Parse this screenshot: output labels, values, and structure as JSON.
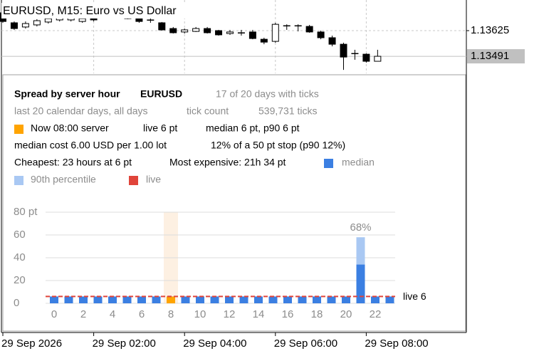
{
  "chart_data": [
    {
      "type": "candlestick",
      "title": "EURUSD, M15:  Euro vs US Dollar",
      "categories": [
        "29 Sep 2026",
        null,
        null,
        null,
        null,
        null,
        null,
        null,
        "29 Sep 02:00",
        null,
        null,
        null,
        null,
        null,
        null,
        null,
        "29 Sep 04:00",
        null,
        null,
        null,
        null,
        null,
        null,
        null,
        "29 Sep 06:00",
        null,
        null,
        null,
        null,
        null,
        null,
        null,
        "29 Sep 08:00",
        null
      ],
      "open": [
        1.13718,
        1.13666,
        1.13644,
        1.13655,
        1.1367,
        1.13681,
        1.13681,
        1.13673,
        1.13703,
        1.13699,
        1.13703,
        1.13711,
        1.13692,
        1.13681,
        1.13666,
        1.13636,
        1.13618,
        1.13621,
        1.13636,
        1.13625,
        1.1361,
        1.13614,
        1.13618,
        1.1358,
        1.13569,
        1.13651,
        1.13651,
        1.13647,
        1.13618,
        1.13588,
        1.13554,
        1.13506,
        1.13502,
        1.13465
      ],
      "high": [
        1.13729,
        1.13673,
        1.13673,
        1.13685,
        1.13696,
        1.13711,
        1.13703,
        1.13703,
        1.13711,
        1.13718,
        1.13718,
        1.13718,
        1.13699,
        1.13703,
        1.1367,
        1.13644,
        1.13636,
        1.13644,
        1.13644,
        1.13629,
        1.13629,
        1.13629,
        1.13629,
        1.13588,
        1.13666,
        1.13658,
        1.13658,
        1.13655,
        1.13625,
        1.13599,
        1.13562,
        1.13525,
        1.13506,
        1.13525
      ],
      "low": [
        1.13666,
        1.13629,
        1.13636,
        1.13647,
        1.13662,
        1.13673,
        1.13673,
        1.13666,
        1.13673,
        1.13692,
        1.13699,
        1.13685,
        1.13666,
        1.13666,
        1.13625,
        1.1361,
        1.1361,
        1.13618,
        1.1361,
        1.13599,
        1.13603,
        1.13599,
        1.1358,
        1.13554,
        1.13562,
        1.13629,
        1.13621,
        1.13614,
        1.1358,
        1.13543,
        1.1342,
        1.13473,
        1.13458,
        1.13465
      ],
      "close": [
        1.13673,
        1.13636,
        1.13662,
        1.13677,
        1.13688,
        1.13696,
        1.13696,
        1.13688,
        1.13681,
        1.13711,
        1.13711,
        1.13688,
        1.13673,
        1.13681,
        1.13629,
        1.13614,
        1.13629,
        1.13636,
        1.13614,
        1.13603,
        1.13618,
        1.13614,
        1.13584,
        1.13565,
        1.13658,
        1.13651,
        1.13651,
        1.13618,
        1.13588,
        1.13554,
        1.13487,
        1.13506,
        1.13465,
        1.13491
      ],
      "ylim": [
        1.13402,
        1.13785
      ],
      "yticks": [
        1.13625
      ],
      "last_price": 1.13491,
      "grid": true
    },
    {
      "type": "bar",
      "annotation": "68%",
      "categories": [
        "0",
        null,
        "2",
        null,
        "4",
        null,
        "6",
        null,
        "8",
        null,
        "10",
        null,
        "12",
        null,
        "14",
        null,
        "16",
        null,
        "18",
        null,
        "20",
        null,
        "22",
        null
      ],
      "series": [
        {
          "name": "90th percentile",
          "color": "#a9c8f3",
          "values": [
            6,
            6,
            6,
            6,
            6,
            6,
            6,
            6,
            6,
            6,
            6,
            6,
            6,
            6,
            6,
            6,
            6,
            6,
            6,
            6,
            6,
            58,
            6,
            6
          ]
        },
        {
          "name": "median",
          "color": "#3b7fe2",
          "values": [
            6,
            6,
            6,
            6,
            6,
            6,
            6,
            6,
            6,
            6,
            6,
            6,
            6,
            6,
            6,
            6,
            6,
            6,
            6,
            6,
            6,
            34,
            6,
            6
          ]
        }
      ],
      "reference_line": {
        "name": "live",
        "value": 6,
        "label": "live 6",
        "color": "#e0443a"
      },
      "highlight": {
        "category": "8",
        "color": "#ffa400",
        "band_color": "#fdf0e2"
      },
      "ylim": [
        0,
        80
      ],
      "yticks": [
        0,
        20,
        40,
        60,
        {
          "value": 80,
          "label": "80 pt"
        }
      ],
      "grid": true
    }
  ],
  "panel": {
    "title": "Spread by server hour",
    "symbol": "EURUSD",
    "coverage": "17 of 20 days with ticks",
    "window": "last 20 calendar days, all days",
    "tick_count_label": "tick count",
    "tick_count": "539,731 ticks",
    "now": "Now 08:00 server",
    "live": "live 6 pt",
    "median_p90": "median 6 pt, p90 6 pt",
    "cost": "median cost 6.00 USD per 1.00 lot",
    "stop": "12% of a 50 pt stop (p90 12%)",
    "cheapest": "Cheapest: 23 hours at 6 pt",
    "expensive": "Most expensive: 21h 34 pt"
  }
}
